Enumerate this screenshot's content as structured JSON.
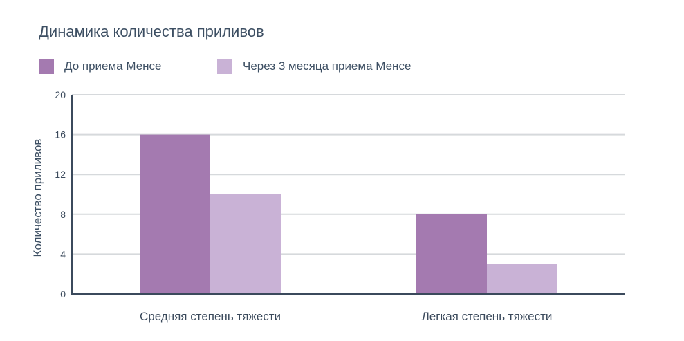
{
  "chart_data": {
    "type": "bar",
    "title": "Динамика количества приливов",
    "xlabel": "",
    "ylabel": "Количество приливов",
    "categories": [
      "Средняя степень тяжести",
      "Легкая степень тяжести"
    ],
    "series": [
      {
        "name": "До приема Менсе",
        "values": [
          16,
          8
        ],
        "color": "#a47ab0"
      },
      {
        "name": "Через 3 месяца приема Менсе",
        "values": [
          10,
          3
        ],
        "color": "#c9b2d6"
      }
    ],
    "ylim": [
      0,
      20
    ],
    "yticks": [
      0,
      4,
      8,
      12,
      16,
      20
    ],
    "ytick_labels": [
      "0",
      "4",
      "8",
      "12",
      "16",
      "20"
    ],
    "grid": true,
    "legend_position": "top-left"
  }
}
